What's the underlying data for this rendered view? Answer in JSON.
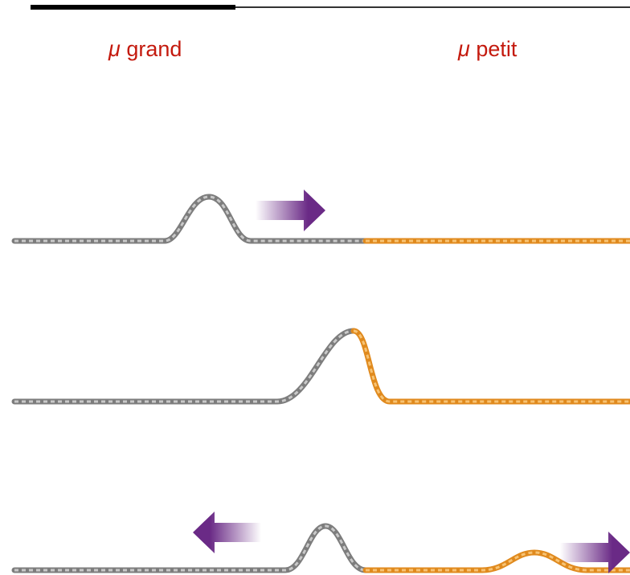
{
  "labels": [
    {
      "symbol": "μ",
      "text": "grand"
    },
    {
      "symbol": "μ",
      "text": "petit"
    }
  ]
}
